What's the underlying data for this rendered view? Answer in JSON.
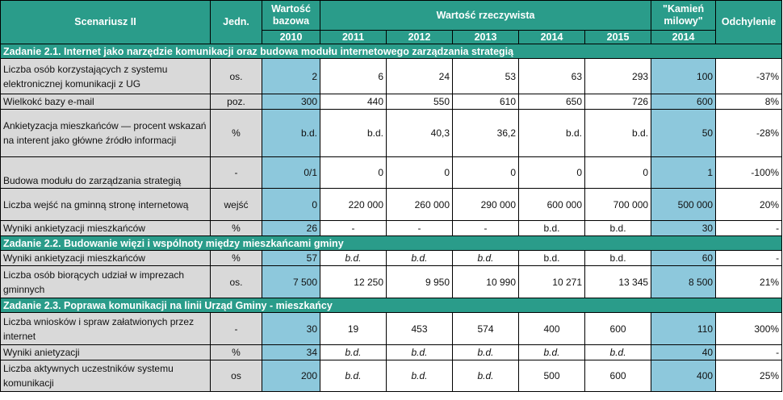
{
  "header": {
    "scenario": "Scenariusz II",
    "unit": "Jedn.",
    "base_value": "Wartość bazowa",
    "actual_value": "Wartość rzeczywista",
    "milestone": "\"Kamień milowy\"",
    "deviation": "Odchylenie",
    "years": [
      "2010",
      "2011",
      "2012",
      "2013",
      "2014",
      "2015",
      "2014"
    ]
  },
  "sections": [
    {
      "title": "Zadanie 2.1. Internet jako narzędzie komunikacji oraz budowa modułu internetowego zarządzania strategią",
      "rows": [
        {
          "label": "Liczba osób korzystających z systemu elektronicznej komunikacji z UG",
          "unit": "os.",
          "base": "2",
          "y2011": "6",
          "y2012": "24",
          "y2013": "53",
          "y2014": "63",
          "y2015": "293",
          "milestone": "100",
          "deviation": "-37%"
        },
        {
          "label": "Wielkokć bazy e-mail",
          "unit": "poz.",
          "base": "300",
          "y2011": "440",
          "y2012": "550",
          "y2013": "610",
          "y2014": "650",
          "y2015": "726",
          "milestone": "600",
          "deviation": "8%"
        },
        {
          "label": "Ankietyzacja mieszkańców — procent wskazań na interent jako główne źródło informacji",
          "unit": "%",
          "base": "b.d.",
          "y2011": "b.d.",
          "y2012": "40,3",
          "y2013": "36,2",
          "y2014": "b.d.",
          "y2015": "b.d.",
          "milestone": "50",
          "deviation": "-28%"
        },
        {
          "label": "Budowa modułu do zarządzania strategią",
          "unit": "-",
          "base": "0/1",
          "y2011": "0",
          "y2012": "0",
          "y2013": "0",
          "y2014": "0",
          "y2015": "0",
          "milestone": "1",
          "deviation": "-100%"
        },
        {
          "label": "Liczba wejść na gminną stronę internetową",
          "unit": "wejść",
          "base": "0",
          "y2011": "220 000",
          "y2012": "260 000",
          "y2013": "290 000",
          "y2014": "600 000",
          "y2015": "700 000",
          "milestone": "500 000",
          "deviation": "20%"
        },
        {
          "label": "Wyniki ankietyzacji mieszkańców",
          "unit": "%",
          "base": "26",
          "y2011": "-",
          "y2012": "-",
          "y2013": "-",
          "y2014": "b.d.",
          "y2015": "b.d.",
          "milestone": "30",
          "deviation": "-"
        }
      ]
    },
    {
      "title": "Zadanie 2.2. Budowanie więzi i wspólnoty między mieszkańcami gminy",
      "rows": [
        {
          "label": " Wyniki ankietyzacji mieszkańców",
          "unit": "%",
          "base": "57",
          "y2011": "b.d.",
          "y2012": "b.d.",
          "y2013": "b.d.",
          "y2014": "b.d.",
          "y2015": "b.d.",
          "milestone": "60",
          "deviation": "-"
        },
        {
          "label": "Liczba osób biorących udział w imprezach gminnych",
          "unit": "os.",
          "base": "7 500",
          "y2011": "12 250",
          "y2012": "9 950",
          "y2013": "10 990",
          "y2014": "10 271",
          "y2015": "13 345",
          "milestone": "8 500",
          "deviation": "21%"
        }
      ]
    },
    {
      "title": "Zadanie 2.3. Poprawa komunikacji na linii Urząd Gminy - mieszkańcy",
      "rows": [
        {
          "label": "Liczba wniosków i spraw załatwionych przez internet",
          "unit": "-",
          "base": "30",
          "y2011": "19",
          "y2012": "453",
          "y2013": "574",
          "y2014": "400",
          "y2015": "600",
          "milestone": "110",
          "deviation": "300%"
        },
        {
          "label": "Wyniki anietyzacji",
          "unit": "%",
          "base": "34",
          "y2011": "b.d.",
          "y2012": "b.d.",
          "y2013": "b.d.",
          "y2014": "b.d.",
          "y2015": "b.d.",
          "milestone": "40",
          "deviation": "-"
        },
        {
          "label": "Liczba aktywnych uczestników systemu komunikacji",
          "unit": "os",
          "base": "200",
          "y2011": "b.d.",
          "y2012": "b.d.",
          "y2013": "b.d.",
          "y2014": "500",
          "y2015": "600",
          "milestone": "400",
          "deviation": "25%"
        }
      ]
    }
  ]
}
